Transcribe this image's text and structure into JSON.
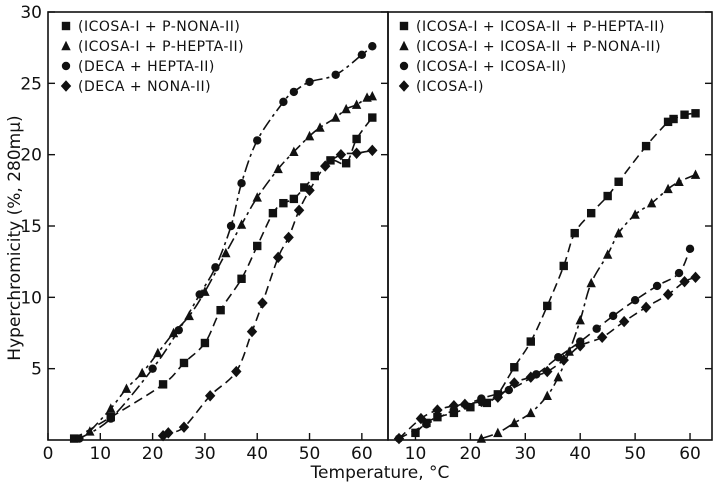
{
  "chart_data": [
    {
      "type": "scatter",
      "panel": "left",
      "xlabel": "Temperature, °C",
      "ylabel": "Hyperchromicity (%, 280mμ)",
      "xlim": [
        0,
        65
      ],
      "ylim": [
        0,
        30
      ],
      "x_ticks": [
        0,
        10,
        20,
        30,
        40,
        50,
        60
      ],
      "y_ticks": [
        5,
        10,
        15,
        20,
        25,
        30
      ],
      "legend_position": "top-left",
      "series": [
        {
          "name": "(ICOSA-I + P-NONA-II)",
          "marker": "square",
          "line": "dash",
          "x": [
            5,
            12,
            22,
            26,
            30,
            33,
            37,
            40,
            43,
            45,
            47,
            49,
            51,
            54,
            57,
            59,
            62
          ],
          "y": [
            0.1,
            1.6,
            3.9,
            5.4,
            6.8,
            9.1,
            11.3,
            13.6,
            15.9,
            16.6,
            16.9,
            17.7,
            18.5,
            19.6,
            19.4,
            21.1,
            22.6
          ]
        },
        {
          "name": "(ICOSA-I + P-HEPTA-II)",
          "marker": "triangle",
          "line": "dashdot",
          "x": [
            8,
            12,
            15,
            18,
            21,
            24,
            27,
            30,
            34,
            37,
            40,
            44,
            47,
            50,
            52,
            55,
            57,
            59,
            61,
            62
          ],
          "y": [
            0.6,
            2.2,
            3.6,
            4.7,
            6.1,
            7.5,
            8.7,
            10.4,
            13.1,
            15.1,
            17.0,
            19.0,
            20.2,
            21.3,
            21.9,
            22.6,
            23.2,
            23.5,
            24.0,
            24.1
          ]
        },
        {
          "name": "(DECA + HEPTA-II)",
          "marker": "circle",
          "line": "dashdot",
          "x": [
            6,
            12,
            20,
            25,
            29,
            32,
            35,
            37,
            40,
            45,
            47,
            50,
            55,
            60,
            62
          ],
          "y": [
            0.1,
            1.5,
            5.0,
            7.7,
            10.2,
            12.1,
            15.0,
            18.0,
            21.0,
            23.7,
            24.4,
            25.1,
            25.6,
            27.0,
            27.6
          ]
        },
        {
          "name": "(DECA + NONA-II)",
          "marker": "diamond",
          "line": "dash",
          "x": [
            22,
            23,
            26,
            31,
            36,
            39,
            41,
            44,
            46,
            48,
            50,
            53,
            56,
            59,
            62
          ],
          "y": [
            0.3,
            0.5,
            0.9,
            3.1,
            4.8,
            7.6,
            9.6,
            12.8,
            14.2,
            16.1,
            17.5,
            19.2,
            20.0,
            20.1,
            20.3
          ]
        }
      ]
    },
    {
      "type": "scatter",
      "panel": "right",
      "xlabel": "Temperature, °C",
      "xlim": [
        5,
        64
      ],
      "ylim": [
        0,
        30
      ],
      "x_ticks": [
        10,
        20,
        30,
        40,
        50,
        60
      ],
      "legend_position": "top-left",
      "series": [
        {
          "name": "(ICOSA-I + ICOSA-II + P-HEPTA-II)",
          "marker": "square",
          "line": "dash",
          "x": [
            10,
            12,
            14,
            17,
            20,
            23,
            25,
            28,
            31,
            34,
            37,
            39,
            42,
            45,
            47,
            52,
            56,
            57,
            59,
            61
          ],
          "y": [
            0.5,
            1.2,
            1.6,
            1.9,
            2.3,
            2.6,
            3.2,
            5.1,
            6.9,
            9.4,
            12.2,
            14.5,
            15.9,
            17.1,
            18.1,
            20.6,
            22.3,
            22.5,
            22.8,
            22.9
          ]
        },
        {
          "name": "(ICOSA-I + ICOSA-II + P-NONA-II)",
          "marker": "triangle",
          "line": "dashdot",
          "x": [
            22,
            25,
            28,
            31,
            34,
            36,
            38,
            40,
            42,
            45,
            47,
            50,
            53,
            56,
            58,
            61
          ],
          "y": [
            0.1,
            0.5,
            1.2,
            1.9,
            3.1,
            4.4,
            6.2,
            8.4,
            11.0,
            13.0,
            14.5,
            15.8,
            16.6,
            17.6,
            18.1,
            18.6
          ]
        },
        {
          "name": "(ICOSA-I + ICOSA-II)",
          "marker": "circle",
          "line": "dash",
          "x": [
            7,
            12,
            17,
            22,
            27,
            32,
            36,
            40,
            43,
            46,
            50,
            54,
            58,
            60
          ],
          "y": [
            0.1,
            1.1,
            2.1,
            2.9,
            3.5,
            4.6,
            5.8,
            6.9,
            7.8,
            8.7,
            9.8,
            10.8,
            11.7,
            13.4
          ]
        },
        {
          "name": "(ICOSA-I)",
          "marker": "diamond",
          "line": "dash",
          "x": [
            7,
            11,
            14,
            17,
            19,
            22,
            25,
            28,
            31,
            34,
            37,
            40,
            44,
            48,
            52,
            56,
            59,
            61
          ],
          "y": [
            0.1,
            1.5,
            2.1,
            2.4,
            2.5,
            2.7,
            3.0,
            4.0,
            4.4,
            4.8,
            5.6,
            6.6,
            7.2,
            8.3,
            9.3,
            10.2,
            11.1,
            11.4
          ]
        }
      ]
    }
  ]
}
